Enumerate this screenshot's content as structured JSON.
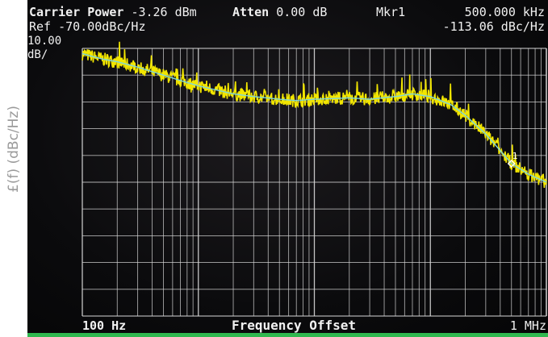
{
  "outer_ylabel": "£(f) (dBc/Hz)",
  "header": {
    "carrier_label": "Carrier Power",
    "carrier_value": "-3.26 dBm",
    "atten_label": "Atten",
    "atten_value": "0.00 dB",
    "marker_label": "Mkr1",
    "marker_freq": "500.000 kHz",
    "ref_label": "Ref -70.00dBc/Hz",
    "marker_value": "-113.06 dBc/Hz",
    "scale_value": "10.00",
    "scale_unit": "dB/"
  },
  "colors": {
    "trace": "#f2e600",
    "smoothed": "#7ed6d9",
    "grid": "#d8d8d8",
    "text": "#f1f1f1"
  },
  "chart_data": {
    "type": "line",
    "xlabel": "Frequency Offset",
    "x_start_label": "100 Hz",
    "x_stop_label": "1 MHz",
    "x_scale": "log",
    "xlim": [
      100,
      1000000
    ],
    "ylim": [
      -170,
      -70
    ],
    "grid": true,
    "marker": {
      "label": "1",
      "x": 500000,
      "y": -113.06
    },
    "series": [
      {
        "kind": "smoothed",
        "x": [
          100,
          150,
          200,
          300,
          500,
          700,
          1000,
          2000,
          3000,
          5000,
          7000,
          10000,
          20000,
          30000,
          50000,
          70000,
          100000,
          150000,
          200000,
          300000,
          500000,
          700000,
          1000000
        ],
        "y": [
          -72,
          -74,
          -75,
          -77,
          -80,
          -82,
          -84,
          -87,
          -88,
          -89,
          -89.5,
          -89,
          -88.5,
          -89,
          -88,
          -87,
          -88,
          -91,
          -95,
          -102,
          -113,
          -117,
          -120
        ]
      },
      {
        "kind": "measured",
        "x": [
          100,
          150,
          200,
          300,
          500,
          700,
          1000,
          2000,
          3000,
          5000,
          7000,
          10000,
          20000,
          30000,
          50000,
          70000,
          100000,
          150000,
          200000,
          300000,
          500000,
          700000,
          1000000
        ],
        "y": [
          -72,
          -74,
          -75,
          -77,
          -80,
          -82,
          -84,
          -87,
          -88,
          -89,
          -89.5,
          -89,
          -88.5,
          -89,
          -88,
          -87,
          -88,
          -91,
          -95,
          -102,
          -113,
          -117,
          -120
        ]
      }
    ]
  }
}
